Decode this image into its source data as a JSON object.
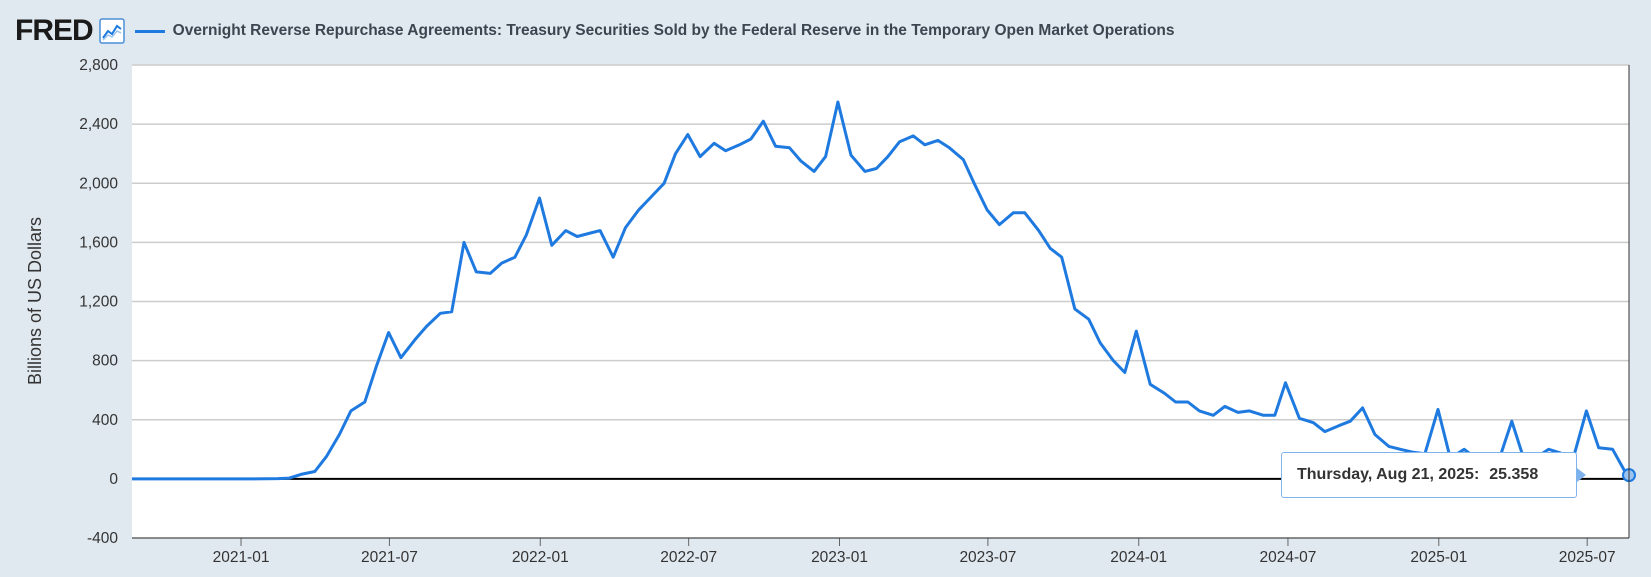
{
  "header": {
    "logo_text": "FRED",
    "logo_icon": "line-chart-icon",
    "title": "Overnight Reverse Repurchase Agreements: Treasury Securities Sold by the Federal Reserve in the Temporary Open Market Operations"
  },
  "colors": {
    "series": "#1f7ae0",
    "background": "#e1e9f0",
    "plot_background": "#ffffff",
    "grid": "#cccccc",
    "zero_line": "#000000",
    "tooltip_border": "#7fb3ee"
  },
  "tooltip": {
    "date": "Thursday, Aug 21, 2025:",
    "value": "25.358"
  },
  "chart_data": {
    "type": "line",
    "title": "Overnight Reverse Repurchase Agreements: Treasury Securities Sold by the Federal Reserve in the Temporary Open Market Operations",
    "ylabel": "Billions of US Dollars",
    "xlabel": "",
    "ylim": [
      -400,
      2800
    ],
    "yticks": [
      -400,
      0,
      400,
      800,
      1200,
      1600,
      2000,
      2400,
      2800
    ],
    "ytick_labels": [
      "-400",
      "0",
      "400",
      "800",
      "1,200",
      "1,600",
      "2,000",
      "2,400",
      "2,800"
    ],
    "xlim": [
      "2020-08-21",
      "2025-08-21"
    ],
    "xticks": [
      "2021-01-01",
      "2021-07-01",
      "2022-01-01",
      "2022-07-01",
      "2023-01-01",
      "2023-07-01",
      "2024-01-01",
      "2024-07-01",
      "2025-01-01",
      "2025-07-01"
    ],
    "xtick_labels": [
      "2021-01",
      "2021-07",
      "2022-01",
      "2022-07",
      "2023-01",
      "2023-07",
      "2024-01",
      "2024-07",
      "2025-01",
      "2025-07"
    ],
    "grid": true,
    "series": [
      {
        "name": "Overnight Reverse Repurchase Agreements",
        "x": [
          "2020-08-21",
          "2020-10-01",
          "2020-12-01",
          "2021-01-15",
          "2021-02-15",
          "2021-03-01",
          "2021-03-15",
          "2021-04-01",
          "2021-04-15",
          "2021-05-01",
          "2021-05-15",
          "2021-06-01",
          "2021-06-15",
          "2021-06-30",
          "2021-07-15",
          "2021-08-01",
          "2021-08-15",
          "2021-09-01",
          "2021-09-15",
          "2021-09-30",
          "2021-10-15",
          "2021-11-01",
          "2021-11-15",
          "2021-12-01",
          "2021-12-15",
          "2021-12-31",
          "2022-01-15",
          "2022-02-01",
          "2022-02-15",
          "2022-03-01",
          "2022-03-15",
          "2022-03-31",
          "2022-04-15",
          "2022-05-01",
          "2022-05-15",
          "2022-06-01",
          "2022-06-15",
          "2022-06-30",
          "2022-07-15",
          "2022-08-01",
          "2022-08-15",
          "2022-09-01",
          "2022-09-15",
          "2022-09-30",
          "2022-10-15",
          "2022-11-01",
          "2022-11-15",
          "2022-12-01",
          "2022-12-15",
          "2022-12-30",
          "2023-01-15",
          "2023-02-01",
          "2023-02-15",
          "2023-03-01",
          "2023-03-15",
          "2023-04-01",
          "2023-04-15",
          "2023-05-01",
          "2023-05-15",
          "2023-06-01",
          "2023-06-15",
          "2023-06-30",
          "2023-07-15",
          "2023-08-01",
          "2023-08-15",
          "2023-09-01",
          "2023-09-15",
          "2023-09-29",
          "2023-10-15",
          "2023-11-01",
          "2023-11-15",
          "2023-12-01",
          "2023-12-15",
          "2023-12-29",
          "2024-01-15",
          "2024-02-01",
          "2024-02-15",
          "2024-03-01",
          "2024-03-15",
          "2024-04-01",
          "2024-04-15",
          "2024-05-01",
          "2024-05-15",
          "2024-06-01",
          "2024-06-15",
          "2024-06-28",
          "2024-07-15",
          "2024-08-01",
          "2024-08-15",
          "2024-09-01",
          "2024-09-15",
          "2024-09-30",
          "2024-10-15",
          "2024-11-01",
          "2024-11-15",
          "2024-12-01",
          "2024-12-15",
          "2024-12-31",
          "2025-01-15",
          "2025-02-01",
          "2025-02-15",
          "2025-03-01",
          "2025-03-15",
          "2025-03-31",
          "2025-04-15",
          "2025-05-01",
          "2025-05-15",
          "2025-06-01",
          "2025-06-15",
          "2025-06-30",
          "2025-07-15",
          "2025-08-01",
          "2025-08-15",
          "2025-08-21"
        ],
        "values": [
          0,
          0,
          0,
          0,
          2,
          5,
          30,
          50,
          150,
          300,
          460,
          520,
          760,
          990,
          820,
          940,
          1030,
          1120,
          1130,
          1600,
          1400,
          1390,
          1460,
          1500,
          1650,
          1900,
          1580,
          1680,
          1640,
          1660,
          1680,
          1500,
          1700,
          1820,
          1900,
          2000,
          2200,
          2330,
          2180,
          2270,
          2220,
          2260,
          2300,
          2420,
          2250,
          2240,
          2150,
          2080,
          2180,
          2550,
          2190,
          2080,
          2100,
          2180,
          2280,
          2320,
          2260,
          2290,
          2240,
          2160,
          1990,
          1820,
          1720,
          1800,
          1800,
          1680,
          1560,
          1500,
          1150,
          1080,
          920,
          800,
          720,
          1000,
          640,
          580,
          520,
          520,
          460,
          430,
          490,
          450,
          460,
          430,
          430,
          650,
          410,
          380,
          320,
          360,
          390,
          480,
          300,
          220,
          200,
          180,
          170,
          470,
          140,
          200,
          140,
          150,
          120,
          390,
          130,
          150,
          200,
          170,
          160,
          460,
          210,
          200,
          60,
          25.358
        ]
      }
    ]
  }
}
